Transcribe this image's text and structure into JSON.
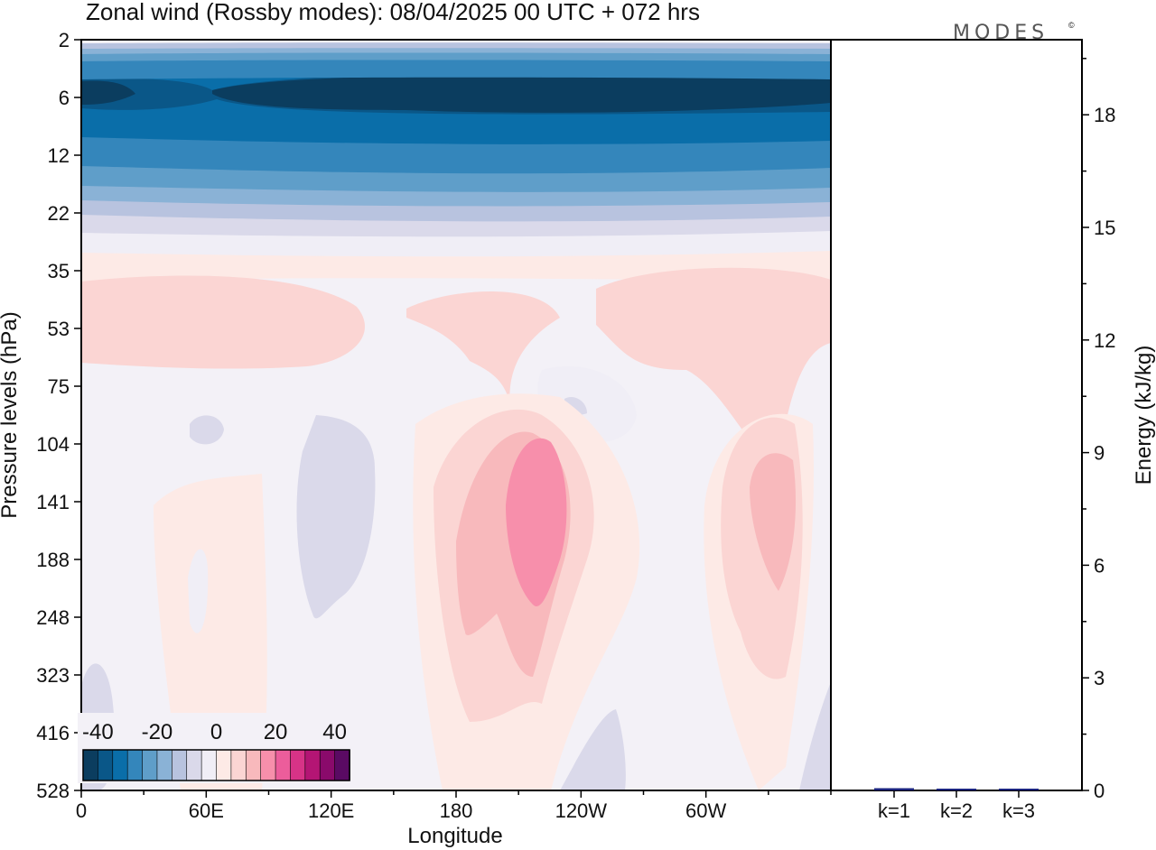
{
  "title": "Zonal wind (Rossby modes):  08/04/2025  00 UTC  + 072 hrs",
  "logo": {
    "text": "MODES",
    "mark": "©"
  },
  "colors": {
    "frame": "#000000",
    "neg": [
      "#0b3d5f",
      "#0a5788",
      "#0a6ea9",
      "#3486bb",
      "#5f9ec9",
      "#8ab2d6",
      "#b8c3df",
      "#dad9ea",
      "#f0eef6"
    ],
    "pos": [
      "#fdeae6",
      "#fbd5d3",
      "#f8b9bc",
      "#f78fab",
      "#ec5d9b",
      "#d73387",
      "#b41574",
      "#8a0a6b",
      "#5a0a63"
    ],
    "bar": "#1a237e"
  },
  "chart_data": [
    {
      "type": "heatmap",
      "title": "Zonal wind (Rossby modes):  08/04/2025  00 UTC  + 072 hrs",
      "xlabel": "Longitude",
      "ylabel": "Pressure levels (hPa)",
      "x_tick_labels": [
        "0",
        "60E",
        "120E",
        "180",
        "120W",
        "60W"
      ],
      "x_values": [
        0,
        60,
        120,
        180,
        240,
        300
      ],
      "x_range": [
        0,
        360
      ],
      "y_tick_labels": [
        "2",
        "6",
        "12",
        "22",
        "35",
        "53",
        "75",
        "104",
        "141",
        "188",
        "248",
        "323",
        "416",
        "528"
      ],
      "y_scale": "model levels (non-uniform)",
      "colorbar": {
        "tick_labels": [
          "-40",
          "-20",
          "0",
          "20",
          "40"
        ],
        "range": [
          -45,
          45
        ],
        "interval": 5,
        "placement": "bottom-left inset"
      },
      "features": [
        {
          "name": "stratospheric easterlies",
          "levels_hPa": [
            2,
            22
          ],
          "value_approx": -35
        },
        {
          "name": "westerly maximum near 160W",
          "levels_hPa": [
            104,
            248
          ],
          "value_approx": 20
        },
        {
          "name": "westerly maximum near 20W",
          "levels_hPa": [
            104,
            188
          ],
          "value_approx": 15
        }
      ]
    },
    {
      "type": "bar",
      "categories": [
        "k=1",
        "k=2",
        "k=3"
      ],
      "values": [
        0.06,
        0.03,
        0.04
      ],
      "ylabel": "Energy (kJ/kg)",
      "y_tick_labels": [
        "0",
        "3",
        "6",
        "9",
        "12",
        "15",
        "18"
      ],
      "ylim": [
        0,
        20
      ]
    }
  ]
}
